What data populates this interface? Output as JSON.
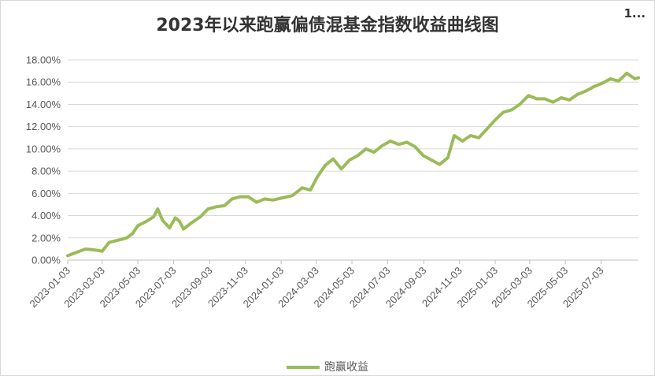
{
  "chart_data": {
    "type": "line",
    "title": "2023年以来跑赢偏债混基金指数收益曲线图",
    "corner_label": "1...",
    "xlabel": "",
    "ylabel": "",
    "ylim": [
      0,
      18
    ],
    "y_ticks": [
      "0.00%",
      "2.00%",
      "4.00%",
      "6.00%",
      "8.00%",
      "10.00%",
      "12.00%",
      "14.00%",
      "16.00%",
      "18.00%"
    ],
    "y_tick_values": [
      0,
      2,
      4,
      6,
      8,
      10,
      12,
      14,
      16,
      18
    ],
    "x_range": [
      "2023-01-03",
      "2025-09-05"
    ],
    "x_ticks": [
      "2023-01-03",
      "2023-03-03",
      "2023-05-03",
      "2023-07-03",
      "2023-09-03",
      "2023-11-03",
      "2024-01-03",
      "2024-03-03",
      "2024-05-03",
      "2024-07-03",
      "2024-09-03",
      "2024-11-03",
      "2025-01-03",
      "2025-03-03",
      "2025-05-03",
      "2025-07-03"
    ],
    "grid": true,
    "legend_position": "bottom",
    "series": [
      {
        "name": "跑赢收益",
        "color": "#9bbb59",
        "points": [
          [
            "2023-01-03",
            0.4
          ],
          [
            "2023-01-18",
            0.7
          ],
          [
            "2023-02-03",
            1.0
          ],
          [
            "2023-02-20",
            0.9
          ],
          [
            "2023-03-03",
            0.8
          ],
          [
            "2023-03-15",
            1.6
          ],
          [
            "2023-03-31",
            1.8
          ],
          [
            "2023-04-14",
            2.0
          ],
          [
            "2023-04-24",
            2.4
          ],
          [
            "2023-05-03",
            3.1
          ],
          [
            "2023-05-18",
            3.5
          ],
          [
            "2023-05-30",
            3.9
          ],
          [
            "2023-06-06",
            4.6
          ],
          [
            "2023-06-14",
            3.6
          ],
          [
            "2023-06-26",
            2.9
          ],
          [
            "2023-07-06",
            3.8
          ],
          [
            "2023-07-13",
            3.5
          ],
          [
            "2023-07-20",
            2.8
          ],
          [
            "2023-08-04",
            3.4
          ],
          [
            "2023-08-18",
            3.9
          ],
          [
            "2023-08-31",
            4.6
          ],
          [
            "2023-09-14",
            4.8
          ],
          [
            "2023-09-28",
            4.9
          ],
          [
            "2023-10-11",
            5.5
          ],
          [
            "2023-10-25",
            5.7
          ],
          [
            "2023-11-08",
            5.7
          ],
          [
            "2023-11-22",
            5.2
          ],
          [
            "2023-12-06",
            5.5
          ],
          [
            "2023-12-20",
            5.4
          ],
          [
            "2024-01-05",
            5.6
          ],
          [
            "2024-01-22",
            5.8
          ],
          [
            "2024-02-08",
            6.5
          ],
          [
            "2024-02-22",
            6.3
          ],
          [
            "2024-03-05",
            7.5
          ],
          [
            "2024-03-18",
            8.5
          ],
          [
            "2024-04-01",
            9.1
          ],
          [
            "2024-04-15",
            8.2
          ],
          [
            "2024-04-29",
            9.0
          ],
          [
            "2024-05-13",
            9.4
          ],
          [
            "2024-05-27",
            10.0
          ],
          [
            "2024-06-10",
            9.7
          ],
          [
            "2024-06-24",
            10.3
          ],
          [
            "2024-07-08",
            10.7
          ],
          [
            "2024-07-22",
            10.4
          ],
          [
            "2024-08-05",
            10.6
          ],
          [
            "2024-08-19",
            10.2
          ],
          [
            "2024-09-02",
            9.4
          ],
          [
            "2024-09-16",
            9.0
          ],
          [
            "2024-09-30",
            8.6
          ],
          [
            "2024-10-14",
            9.2
          ],
          [
            "2024-10-25",
            11.2
          ],
          [
            "2024-11-08",
            10.7
          ],
          [
            "2024-11-22",
            11.2
          ],
          [
            "2024-12-06",
            11.0
          ],
          [
            "2024-12-20",
            11.8
          ],
          [
            "2025-01-03",
            12.6
          ],
          [
            "2025-01-17",
            13.3
          ],
          [
            "2025-01-31",
            13.5
          ],
          [
            "2025-02-14",
            14.0
          ],
          [
            "2025-03-01",
            14.8
          ],
          [
            "2025-03-15",
            14.5
          ],
          [
            "2025-03-29",
            14.5
          ],
          [
            "2025-04-12",
            14.2
          ],
          [
            "2025-04-26",
            14.6
          ],
          [
            "2025-05-10",
            14.4
          ],
          [
            "2025-05-24",
            14.9
          ],
          [
            "2025-06-07",
            15.2
          ],
          [
            "2025-06-21",
            15.6
          ],
          [
            "2025-07-05",
            15.9
          ],
          [
            "2025-07-19",
            16.3
          ],
          [
            "2025-08-02",
            16.1
          ],
          [
            "2025-08-16",
            16.8
          ],
          [
            "2025-08-30",
            16.3
          ],
          [
            "2025-09-05",
            16.4
          ]
        ]
      }
    ]
  }
}
